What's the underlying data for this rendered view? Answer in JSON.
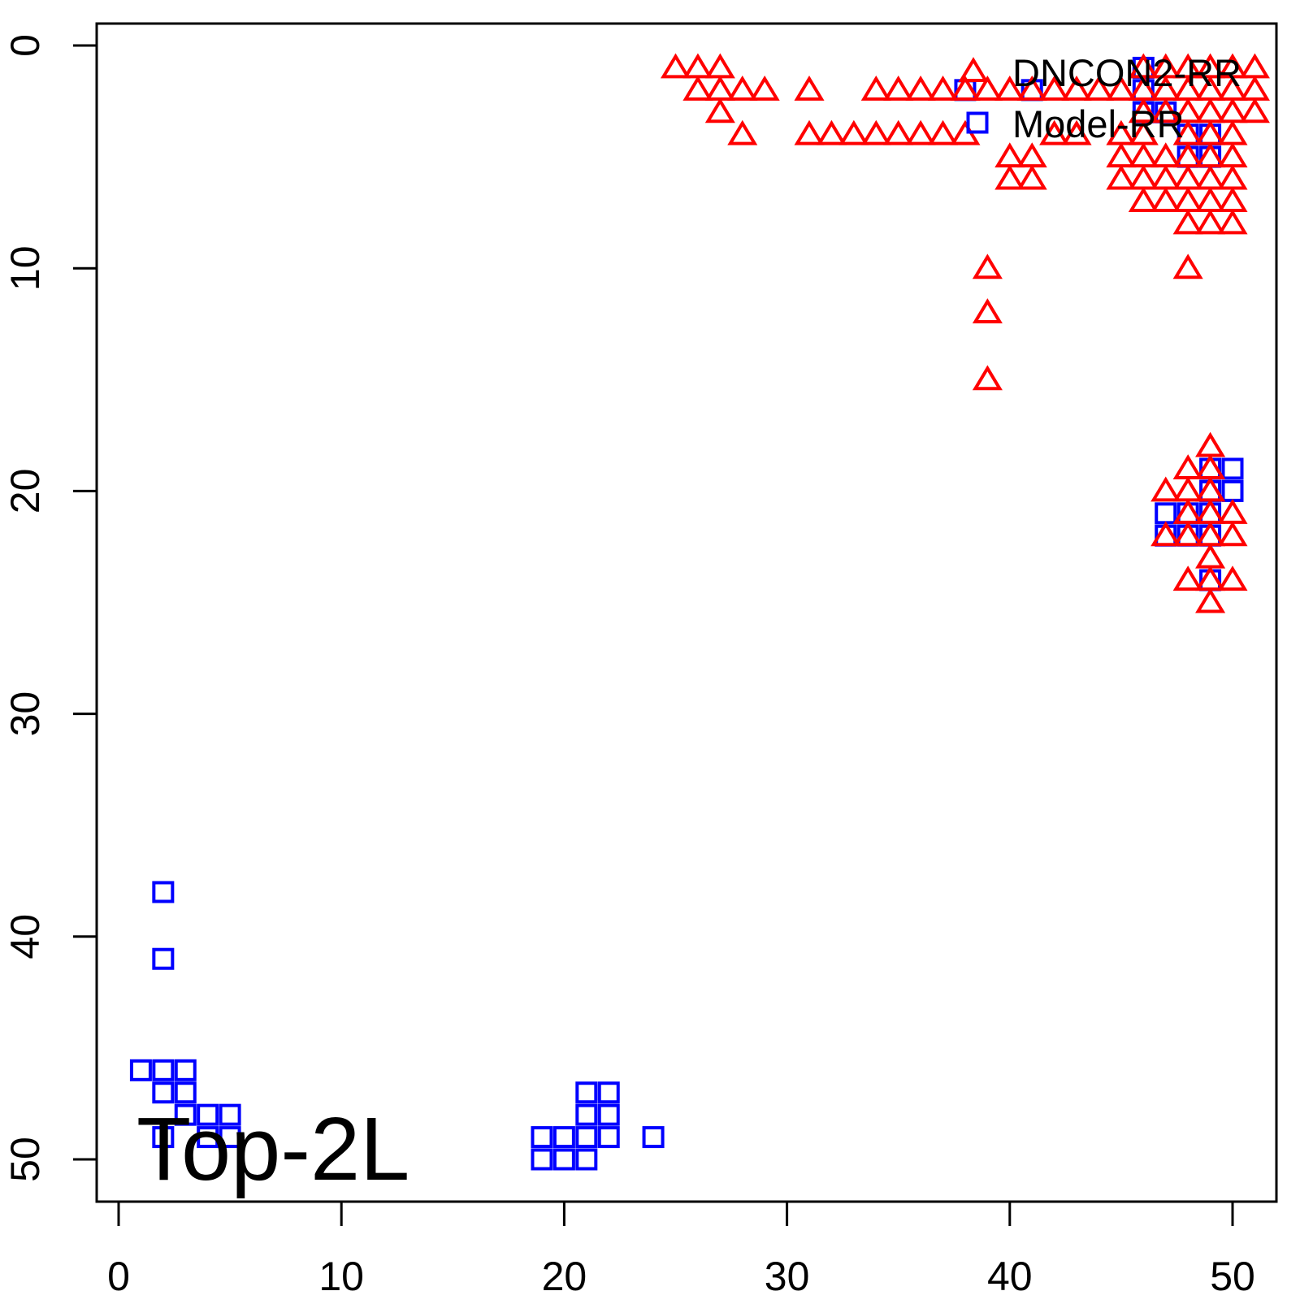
{
  "figure": {
    "background": "#FFFFFF",
    "border_color": "#000000"
  },
  "chart_data": {
    "type": "scatter",
    "title": "",
    "annotation": "Top-2L",
    "x_axis": {
      "ticks": [
        0,
        10,
        20,
        30,
        40,
        50
      ],
      "range": [
        -1,
        52
      ],
      "label": ""
    },
    "y_axis": {
      "ticks": [
        0,
        10,
        20,
        30,
        40,
        50
      ],
      "range": [
        -1,
        52
      ],
      "inverted": true,
      "label": ""
    },
    "legend": {
      "position": "topright",
      "entries": [
        "DNCON2-RR",
        "Model-RR"
      ]
    },
    "series": [
      {
        "name": "DNCON2-RR",
        "marker": "triangle",
        "color": "#FF0000",
        "points": [
          [
            25,
            1
          ],
          [
            26,
            1
          ],
          [
            27,
            1
          ],
          [
            46,
            1
          ],
          [
            47,
            1
          ],
          [
            48,
            1
          ],
          [
            49,
            1
          ],
          [
            50,
            1
          ],
          [
            51,
            1
          ],
          [
            26,
            2
          ],
          [
            27,
            2
          ],
          [
            28,
            2
          ],
          [
            29,
            2
          ],
          [
            31,
            2
          ],
          [
            34,
            2
          ],
          [
            35,
            2
          ],
          [
            36,
            2
          ],
          [
            37,
            2
          ],
          [
            38,
            2
          ],
          [
            39,
            2
          ],
          [
            40,
            2
          ],
          [
            41,
            2
          ],
          [
            42,
            2
          ],
          [
            43,
            2
          ],
          [
            44,
            2
          ],
          [
            45,
            2
          ],
          [
            46,
            2
          ],
          [
            47,
            2
          ],
          [
            48,
            2
          ],
          [
            49,
            2
          ],
          [
            50,
            2
          ],
          [
            51,
            2
          ],
          [
            27,
            3
          ],
          [
            46,
            3
          ],
          [
            47,
            3
          ],
          [
            48,
            3
          ],
          [
            49,
            3
          ],
          [
            50,
            3
          ],
          [
            51,
            3
          ],
          [
            28,
            4
          ],
          [
            31,
            4
          ],
          [
            32,
            4
          ],
          [
            33,
            4
          ],
          [
            34,
            4
          ],
          [
            35,
            4
          ],
          [
            36,
            4
          ],
          [
            37,
            4
          ],
          [
            38,
            4
          ],
          [
            42,
            4
          ],
          [
            43,
            4
          ],
          [
            45,
            4
          ],
          [
            46,
            4
          ],
          [
            48,
            4
          ],
          [
            49,
            4
          ],
          [
            50,
            4
          ],
          [
            40,
            5
          ],
          [
            41,
            5
          ],
          [
            45,
            5
          ],
          [
            46,
            5
          ],
          [
            47,
            5
          ],
          [
            48,
            5
          ],
          [
            49,
            5
          ],
          [
            50,
            5
          ],
          [
            40,
            6
          ],
          [
            41,
            6
          ],
          [
            45,
            6
          ],
          [
            46,
            6
          ],
          [
            47,
            6
          ],
          [
            48,
            6
          ],
          [
            49,
            6
          ],
          [
            50,
            6
          ],
          [
            46,
            7
          ],
          [
            47,
            7
          ],
          [
            48,
            7
          ],
          [
            49,
            7
          ],
          [
            50,
            7
          ],
          [
            48,
            8
          ],
          [
            49,
            8
          ],
          [
            50,
            8
          ],
          [
            39,
            10
          ],
          [
            48,
            10
          ],
          [
            39,
            12
          ],
          [
            39,
            15
          ],
          [
            49,
            18
          ],
          [
            48,
            19
          ],
          [
            49,
            19
          ],
          [
            47,
            20
          ],
          [
            48,
            20
          ],
          [
            49,
            20
          ],
          [
            48,
            21
          ],
          [
            49,
            21
          ],
          [
            50,
            21
          ],
          [
            47,
            22
          ],
          [
            48,
            22
          ],
          [
            49,
            22
          ],
          [
            50,
            22
          ],
          [
            49,
            23
          ],
          [
            48,
            24
          ],
          [
            49,
            24
          ],
          [
            50,
            24
          ],
          [
            49,
            25
          ]
        ]
      },
      {
        "name": "Model-RR",
        "marker": "square",
        "color": "#0000FF",
        "points": [
          [
            46,
            1
          ],
          [
            38,
            2
          ],
          [
            41,
            2
          ],
          [
            46,
            2
          ],
          [
            46,
            3
          ],
          [
            47,
            3
          ],
          [
            48,
            4
          ],
          [
            49,
            4
          ],
          [
            48,
            5
          ],
          [
            49,
            5
          ],
          [
            49,
            19
          ],
          [
            50,
            19
          ],
          [
            49,
            20
          ],
          [
            50,
            20
          ],
          [
            47,
            21
          ],
          [
            48,
            21
          ],
          [
            49,
            21
          ],
          [
            47,
            22
          ],
          [
            48,
            22
          ],
          [
            49,
            22
          ],
          [
            49,
            24
          ],
          [
            2,
            38
          ],
          [
            2,
            41
          ],
          [
            1,
            46
          ],
          [
            2,
            46
          ],
          [
            3,
            46
          ],
          [
            2,
            47
          ],
          [
            3,
            47
          ],
          [
            3,
            48
          ],
          [
            4,
            48
          ],
          [
            5,
            48
          ],
          [
            2,
            49
          ],
          [
            4,
            49
          ],
          [
            5,
            49
          ],
          [
            21,
            47
          ],
          [
            22,
            47
          ],
          [
            21,
            48
          ],
          [
            22,
            48
          ],
          [
            19,
            49
          ],
          [
            20,
            49
          ],
          [
            21,
            49
          ],
          [
            22,
            49
          ],
          [
            24,
            49
          ],
          [
            19,
            50
          ],
          [
            20,
            50
          ],
          [
            21,
            50
          ]
        ]
      }
    ]
  }
}
